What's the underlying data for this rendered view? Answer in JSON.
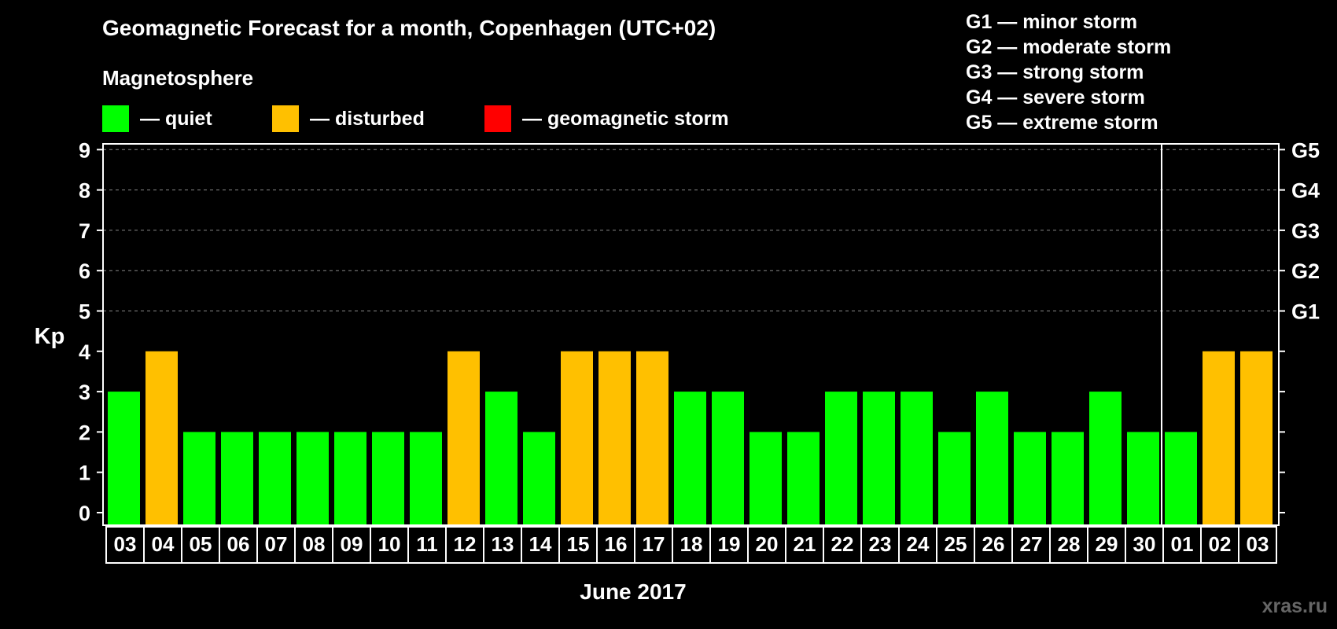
{
  "title": "Geomagnetic Forecast for a month, Copenhagen (UTC+02)",
  "subtitle": "Magnetosphere",
  "legend": [
    {
      "label": "— quiet",
      "color": "#00ff00"
    },
    {
      "label": "— disturbed",
      "color": "#ffc000"
    },
    {
      "label": "— geomagnetic storm",
      "color": "#ff0000"
    }
  ],
  "g_levels": [
    "G1 — minor storm",
    "G2 — moderate storm",
    "G3 — strong storm",
    "G4 — severe storm",
    "G5 — extreme storm"
  ],
  "watermark": "xras.ru",
  "chart_data": {
    "type": "bar",
    "title": "Geomagnetic Forecast for a month, Copenhagen (UTC+02)",
    "xlabel": "June 2017",
    "ylabel": "Kp",
    "ylim": [
      0,
      9.4
    ],
    "yticks": [
      "0",
      "1",
      "2",
      "3",
      "4",
      "5",
      "6",
      "7",
      "8",
      "9"
    ],
    "right_ticks": [
      {
        "value": 5,
        "label": "G1"
      },
      {
        "value": 6,
        "label": "G2"
      },
      {
        "value": 7,
        "label": "G3"
      },
      {
        "value": 8,
        "label": "G4"
      },
      {
        "value": 9,
        "label": "G5"
      }
    ],
    "grid": "dashed horizontal at 5-9",
    "categories": [
      "03",
      "04",
      "05",
      "06",
      "07",
      "08",
      "09",
      "10",
      "11",
      "12",
      "13",
      "14",
      "15",
      "16",
      "17",
      "18",
      "19",
      "20",
      "21",
      "22",
      "23",
      "24",
      "25",
      "26",
      "27",
      "28",
      "29",
      "30",
      "01",
      "02",
      "03"
    ],
    "values": [
      3,
      4,
      2,
      2,
      2,
      2,
      2,
      2,
      2,
      4,
      3,
      2,
      4,
      4,
      4,
      3,
      3,
      2,
      2,
      3,
      3,
      3,
      2,
      3,
      2,
      2,
      3,
      2,
      2,
      4,
      4
    ],
    "status": [
      "quiet",
      "disturbed",
      "quiet",
      "quiet",
      "quiet",
      "quiet",
      "quiet",
      "quiet",
      "quiet",
      "disturbed",
      "quiet",
      "quiet",
      "disturbed",
      "disturbed",
      "disturbed",
      "quiet",
      "quiet",
      "quiet",
      "quiet",
      "quiet",
      "quiet",
      "quiet",
      "quiet",
      "quiet",
      "quiet",
      "quiet",
      "quiet",
      "quiet",
      "quiet",
      "disturbed",
      "disturbed"
    ],
    "colors": {
      "quiet": "#00ff00",
      "disturbed": "#ffc000",
      "storm": "#ff0000"
    },
    "month_divider_after": "30"
  }
}
